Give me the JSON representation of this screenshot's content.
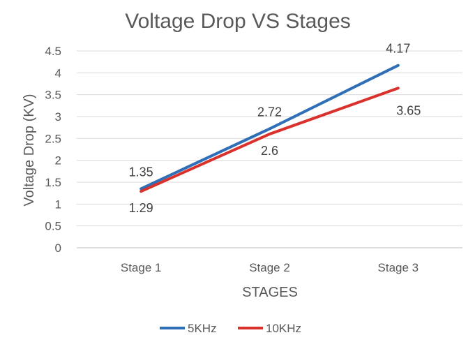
{
  "chart_data": {
    "type": "line",
    "title": "Voltage Drop VS Stages",
    "xlabel": "STAGES",
    "ylabel": "Voltage Drop (KV)",
    "categories": [
      "Stage 1",
      "Stage 2",
      "Stage 3"
    ],
    "ylim": [
      0,
      4.5
    ],
    "yticks": [
      "0",
      "0.5",
      "1",
      "1.5",
      "2",
      "2.5",
      "3",
      "3.5",
      "4",
      "4.5"
    ],
    "grid": true,
    "legend_position": "bottom",
    "series": [
      {
        "name": "5KHz",
        "values": [
          1.35,
          2.72,
          4.17
        ],
        "labels": [
          "1.35",
          "2.72",
          "4.17"
        ],
        "color": "#2e6fb7"
      },
      {
        "name": "10KHz",
        "values": [
          1.29,
          2.6,
          3.65
        ],
        "labels": [
          "1.29",
          "2.6",
          "3.65"
        ],
        "color": "#d9312b"
      }
    ]
  }
}
